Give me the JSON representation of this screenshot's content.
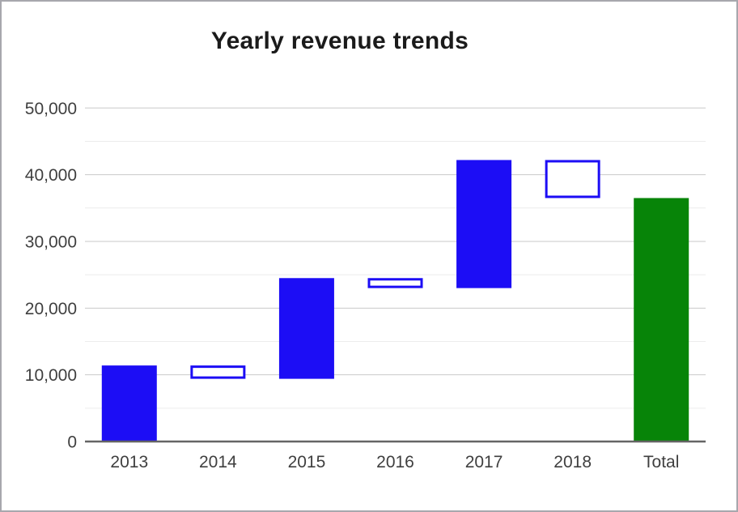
{
  "chart_data": {
    "type": "bar",
    "subtype": "waterfall",
    "title": "Yearly revenue trends",
    "categories": [
      "2013",
      "2014",
      "2015",
      "2016",
      "2017",
      "2018",
      "Total"
    ],
    "segments": [
      {
        "category": "2013",
        "start": 0,
        "end": 11400,
        "delta": 11400,
        "role": "increase",
        "appearance": "filled-blue"
      },
      {
        "category": "2014",
        "start": 11400,
        "end": 9400,
        "delta": -2000,
        "role": "decrease",
        "appearance": "outlined-blue"
      },
      {
        "category": "2015",
        "start": 9400,
        "end": 24500,
        "delta": 15100,
        "role": "increase",
        "appearance": "filled-blue"
      },
      {
        "category": "2016",
        "start": 24500,
        "end": 23000,
        "delta": -1500,
        "role": "decrease",
        "appearance": "outlined-blue"
      },
      {
        "category": "2017",
        "start": 23000,
        "end": 42200,
        "delta": 19200,
        "role": "increase",
        "appearance": "filled-blue"
      },
      {
        "category": "2018",
        "start": 42200,
        "end": 36500,
        "delta": -5700,
        "role": "decrease",
        "appearance": "outlined-blue"
      },
      {
        "category": "Total",
        "start": 0,
        "end": 36500,
        "delta": 36500,
        "role": "total",
        "appearance": "filled-green"
      }
    ],
    "y_axis": {
      "min": 0,
      "max": 50000,
      "major_step": 10000,
      "minor_step": 5000,
      "major_tick_labels": [
        "0",
        "10,000",
        "20,000",
        "30,000",
        "40,000",
        "50,000"
      ]
    },
    "x_axis_labels": [
      "2013",
      "2014",
      "2015",
      "2016",
      "2017",
      "2018",
      "Total"
    ],
    "legend": "none",
    "grid": {
      "major": true,
      "minor": true
    },
    "colors": {
      "increase_bar": "#1c0df5",
      "decrease_bar_outline": "#1c0df5",
      "decrease_bar_fill": "#ffffff",
      "total_bar": "#078408",
      "major_gridline": "#c9c9c9",
      "minor_gridline": "#ececec",
      "baseline": "#656565",
      "axis_label": "#3f3f3f",
      "title": "#1b1b1b"
    }
  }
}
